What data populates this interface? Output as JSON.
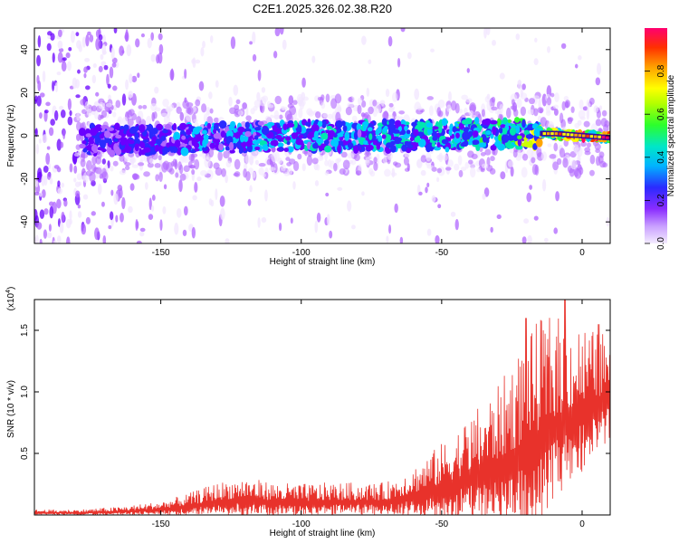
{
  "figure_title": "C2E1.2025.326.02.38.R20",
  "chart_data": [
    {
      "type": "heatmap",
      "title": "C2E1.2025.326.02.38.R20",
      "xlabel": "Height of straight line (km)",
      "ylabel": "Frequency (Hz)",
      "xlim": [
        -195,
        10
      ],
      "ylim": [
        -50,
        50
      ],
      "xticks": [
        -150,
        -100,
        -50,
        0
      ],
      "yticks": [
        -40,
        -20,
        0,
        20,
        40
      ],
      "colorbar": {
        "label": "Normalized spectral amplitude",
        "range": [
          0,
          1
        ],
        "ticks": [
          0.0,
          0.2,
          0.4,
          0.6,
          0.8
        ],
        "colormap": [
          "#f2e6ff",
          "#b066ff",
          "#6a00ff",
          "#2a2aff",
          "#00c8ff",
          "#00e6b0",
          "#33ff33",
          "#ccff00",
          "#ffff00",
          "#ffa500",
          "#ff3300",
          "#ff0066"
        ]
      },
      "ridge": {
        "description": "narrowband signal near 0 Hz strengthening toward 0 km",
        "x": [
          -175,
          -150,
          -125,
          -100,
          -75,
          -50,
          -25,
          -10,
          0,
          10
        ],
        "center_frequency": [
          -2,
          -2,
          -1,
          0,
          0,
          0,
          1,
          1,
          0,
          -1
        ],
        "peak_amplitude": [
          0.3,
          0.35,
          0.4,
          0.45,
          0.45,
          0.5,
          0.55,
          0.9,
          1.0,
          0.95
        ]
      }
    },
    {
      "type": "line",
      "xlabel": "Height of straight line (km)",
      "ylabel": "SNR (10 * v/v)",
      "scale_label": "(x10",
      "scale_exponent": "4",
      "scale_suffix": ")",
      "xlim": [
        -195,
        10
      ],
      "ylim": [
        0,
        1.75
      ],
      "xticks": [
        -150,
        -100,
        -50,
        0
      ],
      "yticks": [
        0.5,
        1.0,
        1.5
      ],
      "ytick_labels": [
        "0.5",
        "1.0",
        "1.5"
      ],
      "color": "#e8322b",
      "series": [
        {
          "name": "SNR",
          "x": [
            -195,
            -180,
            -165,
            -150,
            -140,
            -130,
            -120,
            -110,
            -100,
            -90,
            -80,
            -70,
            -60,
            -50,
            -40,
            -30,
            -20,
            -15,
            -10,
            -5,
            0,
            5,
            10
          ],
          "mean": [
            0.02,
            0.02,
            0.03,
            0.05,
            0.08,
            0.12,
            0.14,
            0.12,
            0.11,
            0.12,
            0.12,
            0.12,
            0.18,
            0.25,
            0.35,
            0.45,
            0.6,
            0.7,
            0.8,
            0.85,
            0.9,
            0.95,
            1.0
          ],
          "spread": [
            0.02,
            0.02,
            0.03,
            0.05,
            0.08,
            0.12,
            0.14,
            0.12,
            0.12,
            0.12,
            0.12,
            0.12,
            0.18,
            0.28,
            0.38,
            0.5,
            0.7,
            0.75,
            0.7,
            0.6,
            0.55,
            0.45,
            0.4
          ],
          "peaks": [
            [
              -20,
              1.6
            ],
            [
              -6,
              1.75
            ],
            [
              6,
              1.55
            ],
            [
              10,
              1.3
            ]
          ]
        }
      ]
    }
  ]
}
